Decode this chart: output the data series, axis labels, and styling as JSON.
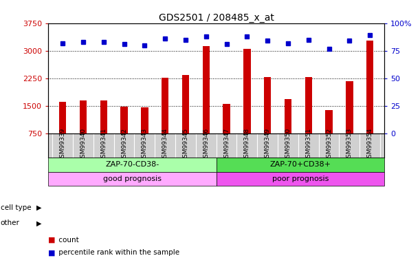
{
  "title": "GDS2501 / 208485_x_at",
  "samples": [
    "GSM99339",
    "GSM99340",
    "GSM99341",
    "GSM99342",
    "GSM99343",
    "GSM99344",
    "GSM99345",
    "GSM99346",
    "GSM99347",
    "GSM99348",
    "GSM99349",
    "GSM99350",
    "GSM99351",
    "GSM99352",
    "GSM99353",
    "GSM99354"
  ],
  "counts": [
    1620,
    1650,
    1660,
    1480,
    1460,
    2260,
    2340,
    3120,
    1550,
    3050,
    2280,
    1680,
    2290,
    1380,
    2180,
    3280
  ],
  "percentiles": [
    82,
    83,
    83,
    81,
    80,
    86,
    85,
    88,
    81,
    88,
    84,
    82,
    85,
    77,
    84,
    89
  ],
  "y_min": 750,
  "y_max": 3750,
  "y_ticks_left": [
    750,
    1500,
    2250,
    3000,
    3750
  ],
  "y_ticks_right": [
    0,
    25,
    50,
    75,
    100
  ],
  "bar_color": "#cc0000",
  "dot_color": "#0000cc",
  "bg_color": "#ffffff",
  "cell_type_groups": [
    {
      "label": "ZAP-70-CD38-",
      "start": 0,
      "end": 8,
      "color": "#aaffaa"
    },
    {
      "label": "ZAP-70+CD38+",
      "start": 8,
      "end": 16,
      "color": "#55dd55"
    }
  ],
  "other_groups": [
    {
      "label": "good prognosis",
      "start": 0,
      "end": 8,
      "color": "#ffaaff"
    },
    {
      "label": "poor prognosis",
      "start": 8,
      "end": 16,
      "color": "#ee55ee"
    }
  ],
  "figsize": [
    6.11,
    3.75
  ],
  "dpi": 100
}
